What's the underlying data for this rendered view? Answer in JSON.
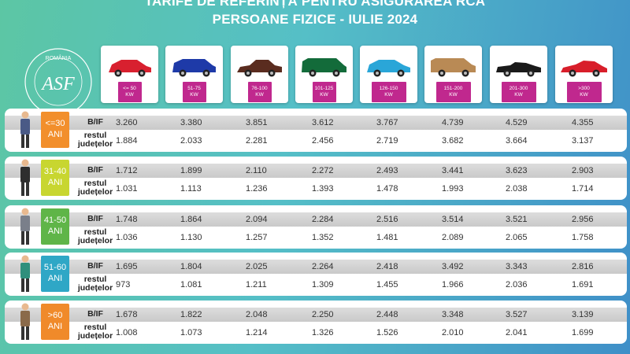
{
  "header": {
    "line1": "TARIFE DE REFERINȚĂ PENTRU ASIGURAREA RCA",
    "line2": "PERSOANE FIZICE - IULIE 2024"
  },
  "logo": {
    "country": "ROMÂNIA",
    "initials": "ASF",
    "ring_text": "AUTORITATEA DE SUPRAVEGHERE FINANCIARĂ"
  },
  "categories": [
    {
      "power": "<= 50",
      "unit": "KW",
      "car_color": "#d8202f",
      "icon": "hatchback-icon"
    },
    {
      "power": "51-75",
      "unit": "KW",
      "car_color": "#1e3aa8",
      "icon": "suv-icon"
    },
    {
      "power": "76-100",
      "unit": "KW",
      "car_color": "#5a2c1f",
      "icon": "sedan-icon"
    },
    {
      "power": "101-125",
      "unit": "KW",
      "car_color": "#136b3a",
      "icon": "minivan-icon"
    },
    {
      "power": "126-150",
      "unit": "KW",
      "car_color": "#2aa6d8",
      "icon": "compact-icon"
    },
    {
      "power": "151-200",
      "unit": "KW",
      "car_color": "#b98a55",
      "icon": "wagon-icon"
    },
    {
      "power": "201-300",
      "unit": "KW",
      "car_color": "#1a1a1a",
      "icon": "convertible-icon"
    },
    {
      "power": ">300",
      "unit": "KW",
      "car_color": "#d81e2a",
      "icon": "sportscar-icon"
    }
  ],
  "row_labels": {
    "bif": "B/IF",
    "rest_line1": "restul",
    "rest_line2": "județelor"
  },
  "age_groups": [
    {
      "label_line1": "<=30",
      "label_line2": "ANI",
      "color": "#f28f2c",
      "bif": [
        "3.260",
        "3.380",
        "3.851",
        "3.612",
        "3.767",
        "4.739",
        "4.529",
        "4.355"
      ],
      "rest": [
        "1.884",
        "2.033",
        "2.281",
        "2.456",
        "2.719",
        "3.682",
        "3.664",
        "3.137"
      ]
    },
    {
      "label_line1": "31-40",
      "label_line2": "ANI",
      "color": "#c8d630",
      "bif": [
        "1.712",
        "1.899",
        "2.110",
        "2.272",
        "2.493",
        "3.441",
        "3.623",
        "2.903"
      ],
      "rest": [
        "1.031",
        "1.113",
        "1.236",
        "1.393",
        "1.478",
        "1.993",
        "2.038",
        "1.714"
      ]
    },
    {
      "label_line1": "41-50",
      "label_line2": "ANI",
      "color": "#5fb548",
      "bif": [
        "1.748",
        "1.864",
        "2.094",
        "2.284",
        "2.516",
        "3.514",
        "3.521",
        "2.956"
      ],
      "rest": [
        "1.036",
        "1.130",
        "1.257",
        "1.352",
        "1.481",
        "2.089",
        "2.065",
        "1.758"
      ]
    },
    {
      "label_line1": "51-60",
      "label_line2": "ANI",
      "color": "#2fa7c6",
      "bif": [
        "1.695",
        "1.804",
        "2.025",
        "2.264",
        "2.418",
        "3.492",
        "3.343",
        "2.816"
      ],
      "rest": [
        "973",
        "1.081",
        "1.211",
        "1.309",
        "1.455",
        "1.966",
        "2.036",
        "1.691"
      ]
    },
    {
      "label_line1": ">60",
      "label_line2": "ANI",
      "color": "#f08a2a",
      "bif": [
        "1.678",
        "1.822",
        "2.048",
        "2.250",
        "2.448",
        "3.348",
        "3.527",
        "3.139"
      ],
      "rest": [
        "1.008",
        "1.073",
        "1.214",
        "1.326",
        "1.526",
        "2.010",
        "2.041",
        "1.699"
      ]
    }
  ]
}
